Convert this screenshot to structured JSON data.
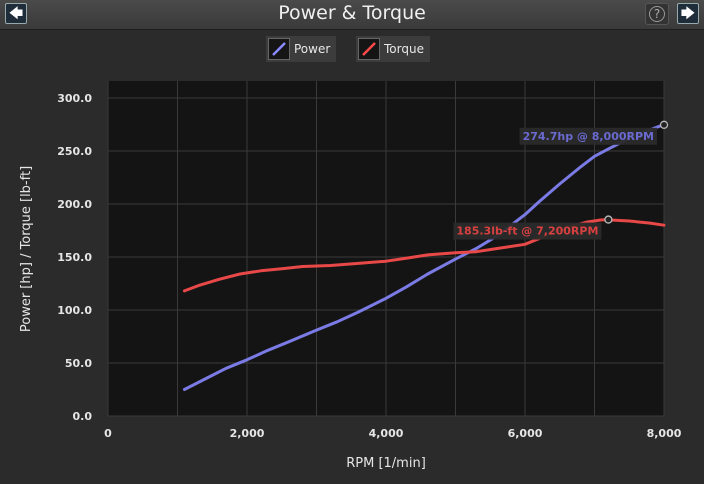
{
  "header": {
    "title": "Power & Torque",
    "back_icon": "left-arrow-icon",
    "forward_icon": "right-arrow-icon",
    "help_icon": "question-icon"
  },
  "legend": {
    "power_label": "Power",
    "torque_label": "Torque"
  },
  "chart_data": {
    "type": "line",
    "xlabel": "RPM [1/min]",
    "ylabel": "Power [hp] / Torque [lb-ft]",
    "xlim": [
      0,
      8000
    ],
    "ylim": [
      0,
      300
    ],
    "xticks": [
      "0",
      "2,000",
      "4,000",
      "6,000",
      "8,000"
    ],
    "yticks": [
      "0.0",
      "50.0",
      "100.0",
      "150.0",
      "200.0",
      "250.0",
      "300.0"
    ],
    "grid": true,
    "legend_position": "top-center",
    "series": [
      {
        "name": "Power",
        "color": "#7b7be6",
        "x": [
          1100,
          1400,
          1700,
          2000,
          2300,
          2600,
          3000,
          3300,
          3600,
          4000,
          4300,
          4600,
          5000,
          5300,
          5600,
          5800,
          6000,
          6200,
          6500,
          6800,
          7000,
          7200,
          7500,
          7800,
          8000
        ],
        "y": [
          25,
          35,
          45,
          53,
          62,
          70,
          81,
          89,
          98,
          111,
          122,
          134,
          148,
          158,
          170,
          180,
          190,
          202,
          219,
          235,
          245,
          252,
          262,
          270,
          275
        ]
      },
      {
        "name": "Torque",
        "color": "#e84848",
        "x": [
          1100,
          1300,
          1600,
          1900,
          2200,
          2500,
          2800,
          3200,
          3600,
          4000,
          4300,
          4600,
          5000,
          5300,
          5600,
          6000,
          6300,
          6600,
          6900,
          7100,
          7200,
          7500,
          7800,
          8000
        ],
        "y": [
          118,
          123,
          129,
          134,
          137,
          139,
          141,
          142,
          144,
          146,
          149,
          152,
          154,
          155,
          158,
          162,
          170,
          178,
          183,
          185,
          185,
          184,
          182,
          180
        ]
      }
    ],
    "annotations": [
      {
        "text": "274.7hp @ 8,000RPM",
        "x": 8000,
        "y": 274.7,
        "color": "#6a6ad0"
      },
      {
        "text": "185.3lb-ft @ 7,200RPM",
        "x": 7200,
        "y": 185.3,
        "color": "#d94040"
      }
    ]
  }
}
